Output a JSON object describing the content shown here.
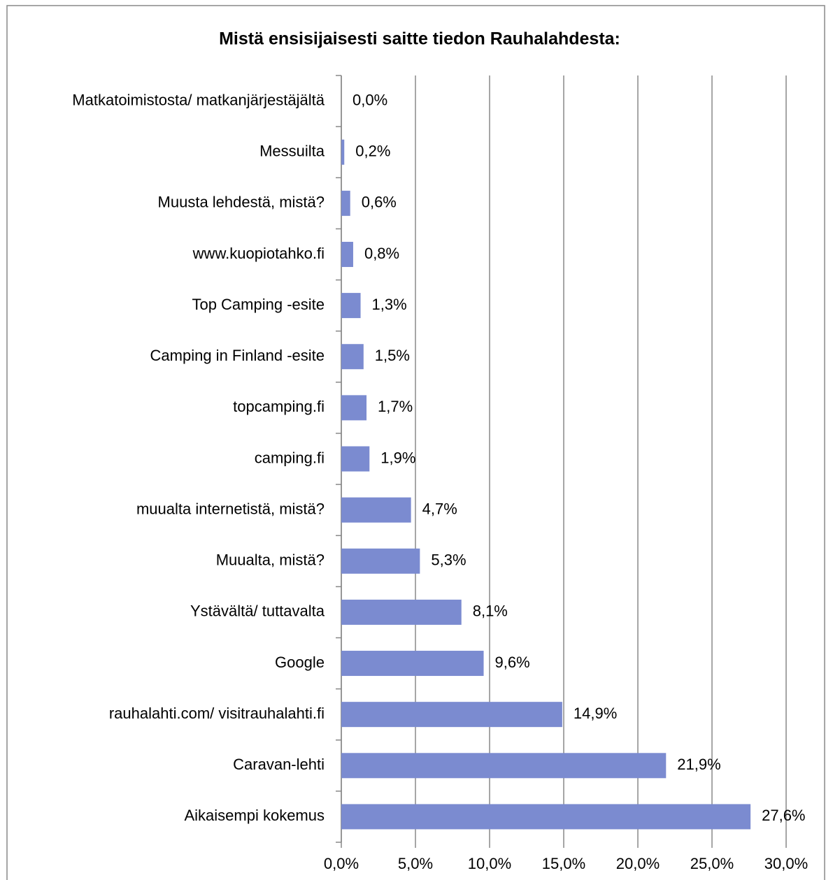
{
  "chart_data": {
    "type": "hbar",
    "title": "Mistä ensisijaisesti saitte tiedon Rauhalahdesta:",
    "categories": [
      "Matkatoimistosta/ matkanjärjestäjältä",
      "Messuilta",
      "Muusta lehdestä, mistä?",
      "www.kuopiotahko.fi",
      "Top Camping -esite",
      "Camping in Finland -esite",
      "topcamping.fi",
      "camping.fi",
      "muualta internetistä, mistä?",
      "Muualta, mistä?",
      "Ystävältä/ tuttavalta",
      "Google",
      "rauhalahti.com/ visitrauhalahti.fi",
      "Caravan-lehti",
      "Aikaisempi kokemus"
    ],
    "values": [
      0.0,
      0.2,
      0.6,
      0.8,
      1.3,
      1.5,
      1.7,
      1.9,
      4.7,
      5.3,
      8.1,
      9.6,
      14.9,
      21.9,
      27.6
    ],
    "value_labels": [
      "0,0%",
      "0,2%",
      "0,6%",
      "0,8%",
      "1,3%",
      "1,5%",
      "1,7%",
      "1,9%",
      "4,7%",
      "5,3%",
      "8,1%",
      "9,6%",
      "14,9%",
      "21,9%",
      "27,6%"
    ],
    "color": "#7b8bd0",
    "xlim": [
      0,
      30
    ],
    "xticks": [
      {
        "value": 0,
        "label": "0,0%"
      },
      {
        "value": 5,
        "label": "5,0%"
      },
      {
        "value": 10,
        "label": "10,0%"
      },
      {
        "value": 15,
        "label": "15,0%"
      },
      {
        "value": 20,
        "label": "20,0%"
      },
      {
        "value": 25,
        "label": "25,0%"
      },
      {
        "value": 30,
        "label": "30,0%"
      }
    ],
    "grid": true
  }
}
